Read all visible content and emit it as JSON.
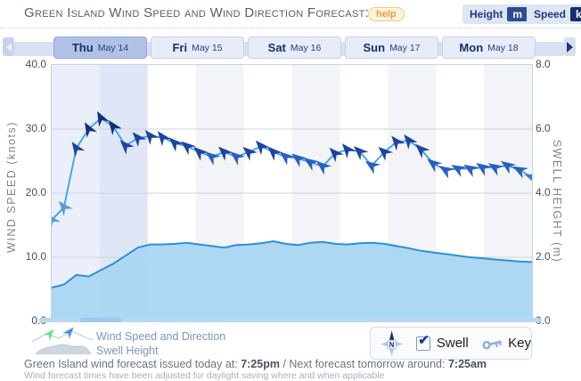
{
  "header": {
    "title": "Green Island Wind Speed and Wind Direction Forecast:",
    "help": "help",
    "height": {
      "label": "Height",
      "unit": "m"
    },
    "speed": {
      "label": "Speed",
      "unit": "knots"
    }
  },
  "tabs": [
    {
      "day": "Thu",
      "date": "May 14",
      "selected": true
    },
    {
      "day": "Fri",
      "date": "May 15",
      "selected": false
    },
    {
      "day": "Sat",
      "date": "May 16",
      "selected": false
    },
    {
      "day": "Sun",
      "date": "May 17",
      "selected": false
    },
    {
      "day": "Mon",
      "date": "May 18",
      "selected": false
    }
  ],
  "axes": {
    "left": {
      "title": "WIND SPEED (knots)",
      "ticks": [
        "40.0",
        "30.0",
        "20.0",
        "10.0",
        "0.0"
      ]
    },
    "right": {
      "title": "SWELL HEIGHT (m)",
      "ticks": [
        "8.0",
        "6.0",
        "4.0",
        "2.0",
        "0.0"
      ]
    }
  },
  "chart_data": {
    "type": "line",
    "title": "Green Island Wind Speed and Wind Direction Forecast",
    "days": [
      "Thu May 14",
      "Fri May 15",
      "Sat May 16",
      "Sun May 17",
      "Mon May 18"
    ],
    "points_per_day": 8,
    "wind_ylim": [
      0,
      40
    ],
    "swell_ylim": [
      0,
      8
    ],
    "selected_day_index": 0,
    "grid": true,
    "legend_position": "bottom-left",
    "series": [
      {
        "name": "Wind Speed and Direction",
        "unit": "knots",
        "values": [
          15.8,
          17.8,
          27.0,
          30.0,
          31.7,
          30.4,
          27.4,
          28.6,
          28.9,
          28.7,
          27.8,
          27.3,
          26.4,
          25.7,
          26.4,
          25.7,
          26.4,
          27.3,
          26.4,
          25.7,
          25.4,
          24.8,
          24.2,
          26.2,
          26.8,
          26.5,
          24.3,
          26.4,
          28.0,
          28.2,
          26.8,
          24.6,
          23.6,
          23.8,
          23.8,
          24.0,
          24.0,
          24.3,
          23.6,
          22.5
        ],
        "directions_deg_from_north": [
          -38,
          -40,
          -34,
          -30,
          -28,
          -36,
          -44,
          -42,
          -40,
          -38,
          -46,
          -50,
          -48,
          -52,
          -46,
          -50,
          -48,
          -42,
          -46,
          -50,
          -52,
          -55,
          -50,
          -44,
          -40,
          -46,
          -56,
          -48,
          -40,
          -38,
          -46,
          -52,
          -58,
          -60,
          -58,
          -55,
          -58,
          -55,
          -62,
          -70
        ]
      },
      {
        "name": "Swell Height",
        "unit": "m",
        "values": [
          1.05,
          1.15,
          1.45,
          1.4,
          1.6,
          1.8,
          2.05,
          2.3,
          2.4,
          2.4,
          2.42,
          2.45,
          2.4,
          2.35,
          2.3,
          2.38,
          2.4,
          2.44,
          2.5,
          2.42,
          2.38,
          2.45,
          2.48,
          2.42,
          2.4,
          2.44,
          2.45,
          2.42,
          2.35,
          2.28,
          2.2,
          2.15,
          2.1,
          2.05,
          2.0,
          1.97,
          1.93,
          1.9,
          1.87,
          1.85
        ]
      }
    ],
    "colors": {
      "wind_line": "#35a2ea",
      "swell_line": "#2d8fd9",
      "swell_fill": "#a9d6f3",
      "grid": "#cdd3de",
      "band_selected": [
        "#eaeffb",
        "#dfe7f7"
      ],
      "band_normal": [
        "#ffffff",
        "#f3f4f7"
      ],
      "arrow_speed_colors": [
        [
          29,
          "#14307c"
        ],
        [
          26,
          "#1c44a0"
        ],
        [
          23,
          "#2a5fc0"
        ],
        [
          19,
          "#3f7fd4"
        ],
        [
          0,
          "#5b9bd5"
        ]
      ]
    }
  },
  "legend": {
    "wind_label": "Wind Speed and Direction",
    "swell_label": "Swell Height"
  },
  "controls": {
    "compass_n": "N",
    "swell": "Swell",
    "key": "Key"
  },
  "footer": {
    "line1_prefix": "Green Island wind forecast issued today at: ",
    "time1": "7:25pm",
    "line1_mid": " / Next forecast tomorrow around: ",
    "time2": "7:25am",
    "line2": "Wind forecast times have been adjusted for daylight saving where and when applicable"
  }
}
